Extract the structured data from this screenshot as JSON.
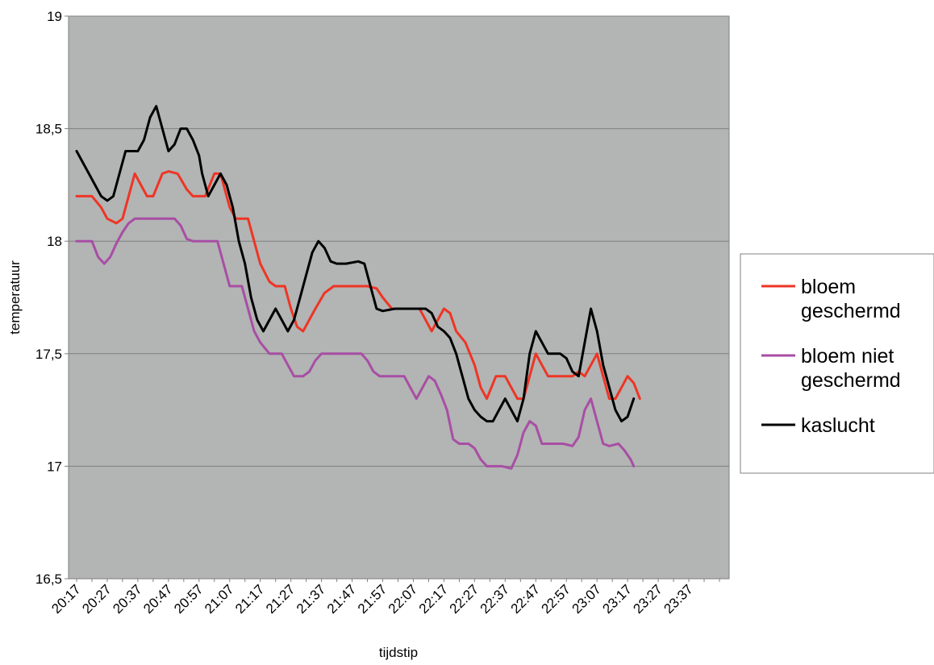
{
  "chart_data": {
    "type": "line",
    "title": "",
    "xlabel": "tijdstip",
    "ylabel": "temperatuur",
    "ylim": [
      16.5,
      19
    ],
    "yticks": [
      16.5,
      17,
      17.5,
      18,
      18.5,
      19
    ],
    "ytick_labels": [
      "16,5",
      "17",
      "17,5",
      "18",
      "18,5",
      "19"
    ],
    "xtick_labels": [
      "20:17",
      "20:27",
      "20:37",
      "20:47",
      "20:57",
      "21:07",
      "21:17",
      "21:27",
      "21:37",
      "21:47",
      "21:57",
      "22:07",
      "22:17",
      "22:27",
      "22:37",
      "22:47",
      "22:57",
      "23:07",
      "23:17",
      "23:27",
      "23:37"
    ],
    "xlim": [
      0,
      210
    ],
    "x_tick_step": 10,
    "grid": "horizontal",
    "legend_position": "right",
    "plot_background": "#b3b4b4",
    "series": [
      {
        "name": "bloem geschermd",
        "color": "#ee3524",
        "points": [
          [
            0,
            18.2
          ],
          [
            2,
            18.2
          ],
          [
            5,
            18.2
          ],
          [
            8,
            18.15
          ],
          [
            10,
            18.1
          ],
          [
            13,
            18.08
          ],
          [
            15,
            18.1
          ],
          [
            17,
            18.2
          ],
          [
            19,
            18.3
          ],
          [
            21,
            18.25
          ],
          [
            23,
            18.2
          ],
          [
            25,
            18.2
          ],
          [
            28,
            18.3
          ],
          [
            30,
            18.31
          ],
          [
            33,
            18.3
          ],
          [
            36,
            18.23
          ],
          [
            38,
            18.2
          ],
          [
            42,
            18.2
          ],
          [
            45,
            18.3
          ],
          [
            47,
            18.3
          ],
          [
            50,
            18.15
          ],
          [
            52,
            18.1
          ],
          [
            54,
            18.1
          ],
          [
            56,
            18.1
          ],
          [
            58,
            18.0
          ],
          [
            60,
            17.9
          ],
          [
            63,
            17.82
          ],
          [
            65,
            17.8
          ],
          [
            68,
            17.8
          ],
          [
            70,
            17.7
          ],
          [
            72,
            17.62
          ],
          [
            74,
            17.6
          ],
          [
            76,
            17.65
          ],
          [
            78,
            17.7
          ],
          [
            81,
            17.77
          ],
          [
            84,
            17.8
          ],
          [
            87,
            17.8
          ],
          [
            90,
            17.8
          ],
          [
            95,
            17.8
          ],
          [
            98,
            17.79
          ],
          [
            100,
            17.75
          ],
          [
            103,
            17.7
          ],
          [
            108,
            17.7
          ],
          [
            112,
            17.7
          ],
          [
            114,
            17.65
          ],
          [
            116,
            17.6
          ],
          [
            118,
            17.65
          ],
          [
            120,
            17.7
          ],
          [
            122,
            17.68
          ],
          [
            124,
            17.6
          ],
          [
            127,
            17.55
          ],
          [
            130,
            17.45
          ],
          [
            132,
            17.35
          ],
          [
            134,
            17.3
          ],
          [
            137,
            17.4
          ],
          [
            140,
            17.4
          ],
          [
            142,
            17.35
          ],
          [
            144,
            17.3
          ],
          [
            146,
            17.3
          ],
          [
            148,
            17.4
          ],
          [
            150,
            17.5
          ],
          [
            152,
            17.45
          ],
          [
            154,
            17.4
          ],
          [
            156,
            17.4
          ],
          [
            158,
            17.4
          ],
          [
            162,
            17.4
          ],
          [
            164,
            17.42
          ],
          [
            166,
            17.4
          ],
          [
            168,
            17.45
          ],
          [
            170,
            17.5
          ],
          [
            172,
            17.4
          ],
          [
            174,
            17.3
          ],
          [
            176,
            17.3
          ],
          [
            178,
            17.35
          ],
          [
            180,
            17.4
          ],
          [
            182,
            17.37
          ],
          [
            184,
            17.3
          ]
        ]
      },
      {
        "name": "bloem niet geschermd",
        "color": "#a84ea4",
        "points": [
          [
            0,
            18.0
          ],
          [
            2,
            18.0
          ],
          [
            5,
            18.0
          ],
          [
            7,
            17.93
          ],
          [
            9,
            17.9
          ],
          [
            11,
            17.93
          ],
          [
            13,
            17.99
          ],
          [
            15,
            18.04
          ],
          [
            17,
            18.08
          ],
          [
            19,
            18.1
          ],
          [
            22,
            18.1
          ],
          [
            25,
            18.1
          ],
          [
            28,
            18.1
          ],
          [
            30,
            18.1
          ],
          [
            32,
            18.1
          ],
          [
            34,
            18.07
          ],
          [
            36,
            18.01
          ],
          [
            38,
            18.0
          ],
          [
            42,
            18.0
          ],
          [
            44,
            18.0
          ],
          [
            46,
            18.0
          ],
          [
            48,
            17.9
          ],
          [
            50,
            17.8
          ],
          [
            52,
            17.8
          ],
          [
            54,
            17.8
          ],
          [
            56,
            17.7
          ],
          [
            58,
            17.6
          ],
          [
            60,
            17.55
          ],
          [
            63,
            17.5
          ],
          [
            65,
            17.5
          ],
          [
            67,
            17.5
          ],
          [
            69,
            17.45
          ],
          [
            71,
            17.4
          ],
          [
            74,
            17.4
          ],
          [
            76,
            17.42
          ],
          [
            78,
            17.47
          ],
          [
            80,
            17.5
          ],
          [
            84,
            17.5
          ],
          [
            88,
            17.5
          ],
          [
            91,
            17.5
          ],
          [
            93,
            17.5
          ],
          [
            95,
            17.47
          ],
          [
            97,
            17.42
          ],
          [
            99,
            17.4
          ],
          [
            101,
            17.4
          ],
          [
            105,
            17.4
          ],
          [
            107,
            17.4
          ],
          [
            109,
            17.35
          ],
          [
            111,
            17.3
          ],
          [
            113,
            17.35
          ],
          [
            115,
            17.4
          ],
          [
            117,
            17.38
          ],
          [
            119,
            17.32
          ],
          [
            121,
            17.25
          ],
          [
            123,
            17.12
          ],
          [
            125,
            17.1
          ],
          [
            128,
            17.1
          ],
          [
            130,
            17.08
          ],
          [
            132,
            17.03
          ],
          [
            134,
            17.0
          ],
          [
            137,
            17.0
          ],
          [
            139,
            17.0
          ],
          [
            142,
            16.99
          ],
          [
            144,
            17.05
          ],
          [
            146,
            17.15
          ],
          [
            148,
            17.2
          ],
          [
            150,
            17.18
          ],
          [
            152,
            17.1
          ],
          [
            156,
            17.1
          ],
          [
            159,
            17.1
          ],
          [
            162,
            17.09
          ],
          [
            164,
            17.13
          ],
          [
            166,
            17.25
          ],
          [
            168,
            17.3
          ],
          [
            170,
            17.2
          ],
          [
            172,
            17.1
          ],
          [
            174,
            17.09
          ],
          [
            177,
            17.1
          ],
          [
            179,
            17.07
          ],
          [
            181,
            17.03
          ],
          [
            182,
            17.0
          ]
        ]
      },
      {
        "name": "kaslucht",
        "color": "#000000",
        "points": [
          [
            0,
            18.4
          ],
          [
            4,
            18.3
          ],
          [
            8,
            18.2
          ],
          [
            10,
            18.18
          ],
          [
            12,
            18.2
          ],
          [
            14,
            18.3
          ],
          [
            16,
            18.4
          ],
          [
            18,
            18.4
          ],
          [
            20,
            18.4
          ],
          [
            22,
            18.45
          ],
          [
            24,
            18.55
          ],
          [
            26,
            18.6
          ],
          [
            27,
            18.55
          ],
          [
            29,
            18.45
          ],
          [
            30,
            18.4
          ],
          [
            32,
            18.43
          ],
          [
            34,
            18.5
          ],
          [
            36,
            18.5
          ],
          [
            38,
            18.45
          ],
          [
            40,
            18.38
          ],
          [
            41,
            18.3
          ],
          [
            43,
            18.2
          ],
          [
            45,
            18.25
          ],
          [
            47,
            18.3
          ],
          [
            49,
            18.25
          ],
          [
            51,
            18.15
          ],
          [
            53,
            18.0
          ],
          [
            55,
            17.9
          ],
          [
            57,
            17.75
          ],
          [
            59,
            17.65
          ],
          [
            61,
            17.6
          ],
          [
            63,
            17.65
          ],
          [
            65,
            17.7
          ],
          [
            67,
            17.65
          ],
          [
            69,
            17.6
          ],
          [
            71,
            17.65
          ],
          [
            73,
            17.75
          ],
          [
            75,
            17.85
          ],
          [
            77,
            17.95
          ],
          [
            79,
            18.0
          ],
          [
            81,
            17.97
          ],
          [
            83,
            17.91
          ],
          [
            85,
            17.9
          ],
          [
            88,
            17.9
          ],
          [
            92,
            17.91
          ],
          [
            94,
            17.9
          ],
          [
            96,
            17.8
          ],
          [
            98,
            17.7
          ],
          [
            100,
            17.69
          ],
          [
            104,
            17.7
          ],
          [
            108,
            17.7
          ],
          [
            112,
            17.7
          ],
          [
            114,
            17.7
          ],
          [
            116,
            17.68
          ],
          [
            118,
            17.62
          ],
          [
            120,
            17.6
          ],
          [
            122,
            17.57
          ],
          [
            124,
            17.5
          ],
          [
            126,
            17.4
          ],
          [
            128,
            17.3
          ],
          [
            130,
            17.25
          ],
          [
            132,
            17.22
          ],
          [
            134,
            17.2
          ],
          [
            136,
            17.2
          ],
          [
            138,
            17.25
          ],
          [
            140,
            17.3
          ],
          [
            142,
            17.25
          ],
          [
            144,
            17.2
          ],
          [
            146,
            17.3
          ],
          [
            148,
            17.5
          ],
          [
            150,
            17.6
          ],
          [
            152,
            17.55
          ],
          [
            154,
            17.5
          ],
          [
            156,
            17.5
          ],
          [
            158,
            17.5
          ],
          [
            160,
            17.48
          ],
          [
            162,
            17.42
          ],
          [
            164,
            17.4
          ],
          [
            166,
            17.55
          ],
          [
            168,
            17.7
          ],
          [
            170,
            17.6
          ],
          [
            172,
            17.45
          ],
          [
            174,
            17.35
          ],
          [
            176,
            17.25
          ],
          [
            178,
            17.2
          ],
          [
            180,
            17.22
          ],
          [
            182,
            17.3
          ]
        ]
      }
    ]
  }
}
